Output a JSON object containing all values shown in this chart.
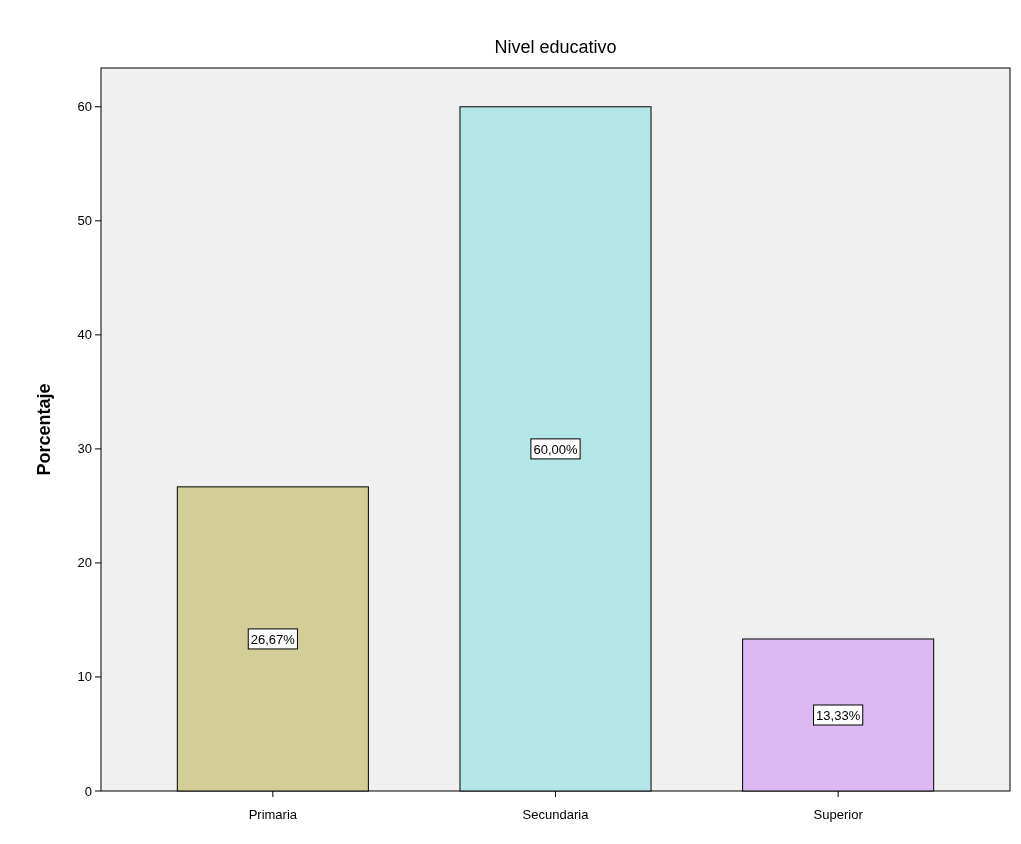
{
  "chart_data": {
    "type": "bar",
    "title": "Nivel educativo",
    "ylabel": "Porcentaje",
    "categories": [
      "Primaria",
      "Secundaria",
      "Superior"
    ],
    "values": [
      26.67,
      60,
      13.33
    ],
    "colors": [
      "#d3ce97",
      "#b4e6e8",
      "#dcb9f0"
    ],
    "value_labels": [
      "26,67%",
      "60,00%",
      "13,33%"
    ],
    "ylim": [
      0,
      63.4
    ],
    "yticks": [
      0,
      10,
      20,
      30,
      40,
      50,
      60
    ],
    "grid": false
  }
}
